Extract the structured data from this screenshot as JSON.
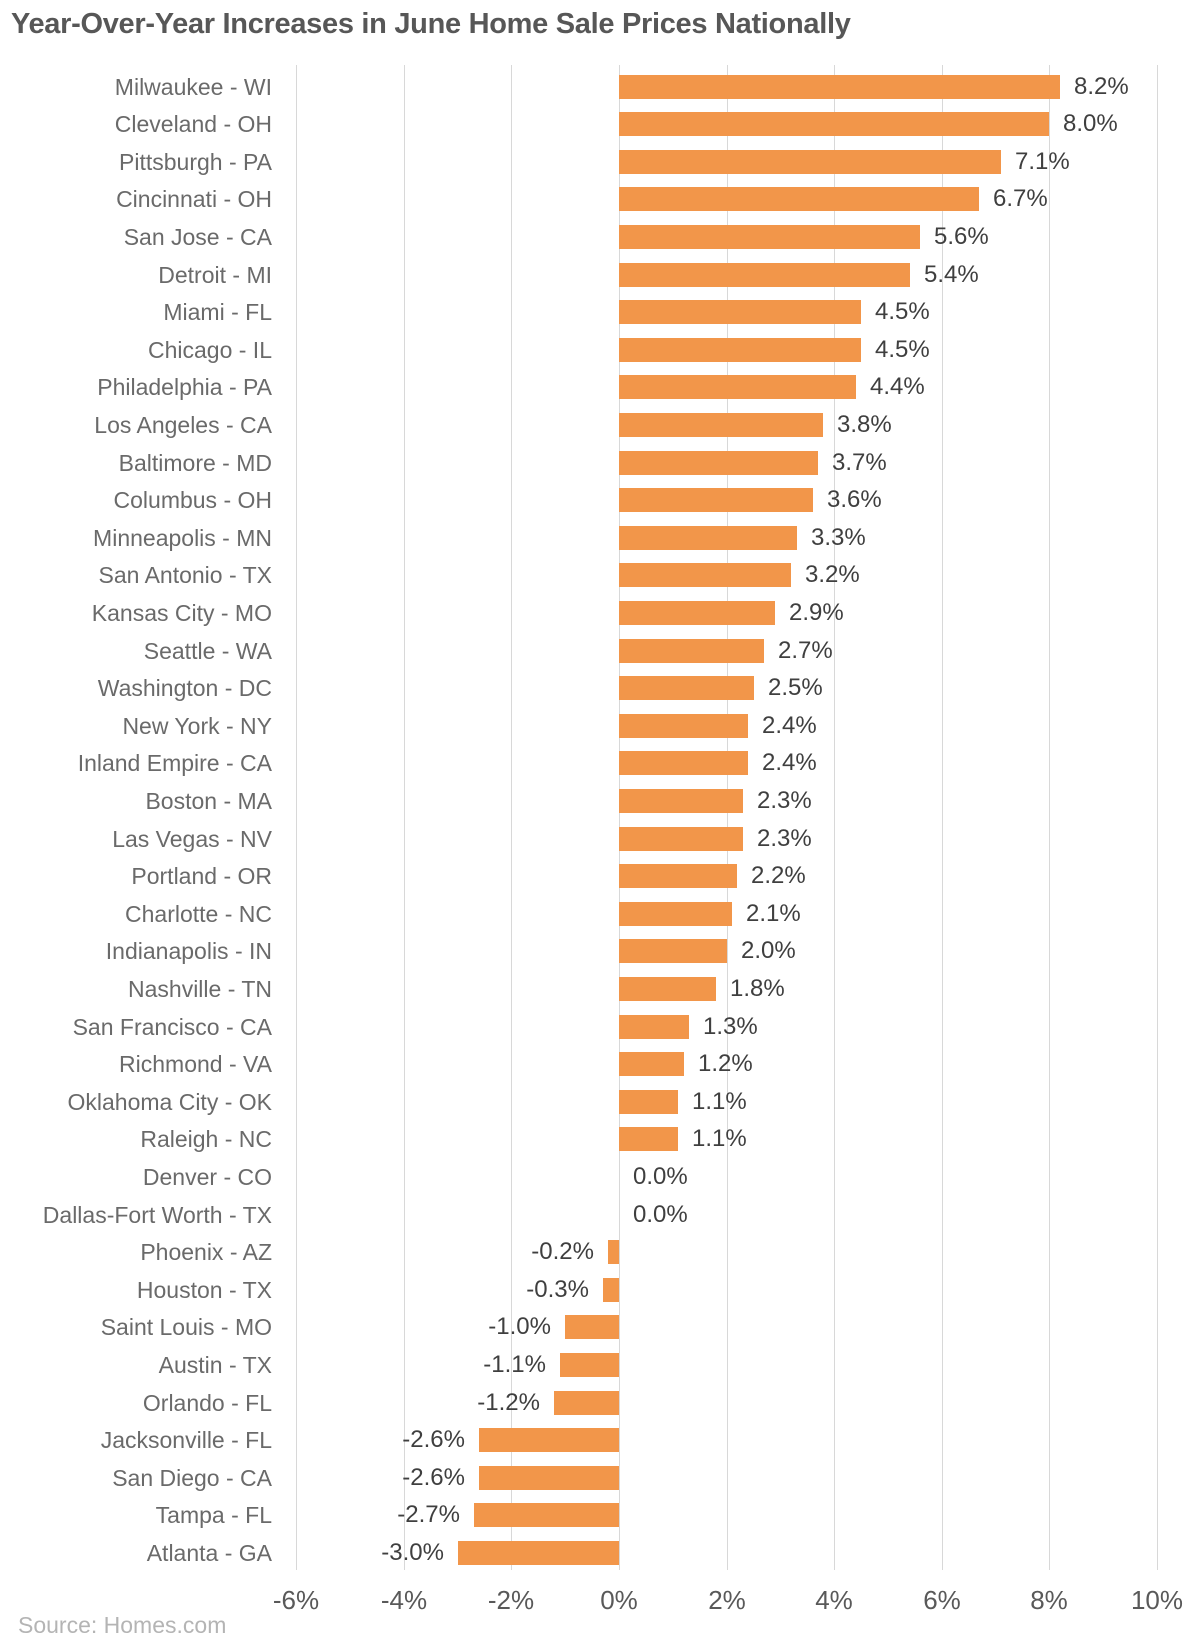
{
  "title": "Year-Over-Year Increases in June Home Sale Prices Nationally",
  "source_label": "Source: Homes.com",
  "colors": {
    "background": "#ffffff",
    "bar": "#F2964A",
    "title": "#575757",
    "category_label": "#6a6a6a",
    "value_label": "#3f3f3f",
    "tick_label": "#595959",
    "gridline": "#d8d8d8",
    "source": "#b4b4b4"
  },
  "chart_data": {
    "type": "bar",
    "orientation": "horizontal",
    "title": "Year-Over-Year Increases in June Home Sale Prices Nationally",
    "xlabel": "",
    "ylabel": "",
    "xlim": [
      -6,
      10
    ],
    "x_ticks": [
      -6,
      -4,
      -2,
      0,
      2,
      4,
      6,
      8,
      10
    ],
    "x_tick_labels": [
      "-6%",
      "-4%",
      "-2%",
      "0%",
      "2%",
      "4%",
      "6%",
      "8%",
      "10%"
    ],
    "grid": true,
    "legend": "none",
    "source": "Source: Homes.com",
    "categories": [
      "Milwaukee - WI",
      "Cleveland - OH",
      "Pittsburgh - PA",
      "Cincinnati - OH",
      "San Jose - CA",
      "Detroit - MI",
      "Miami - FL",
      "Chicago - IL",
      "Philadelphia - PA",
      "Los Angeles - CA",
      "Baltimore - MD",
      "Columbus - OH",
      "Minneapolis - MN",
      "San Antonio - TX",
      "Kansas City - MO",
      "Seattle - WA",
      "Washington - DC",
      "New York - NY",
      "Inland Empire - CA",
      "Boston - MA",
      "Las Vegas - NV",
      "Portland - OR",
      "Charlotte - NC",
      "Indianapolis - IN",
      "Nashville - TN",
      "San Francisco - CA",
      "Richmond - VA",
      "Oklahoma City - OK",
      "Raleigh - NC",
      "Denver - CO",
      "Dallas-Fort Worth - TX",
      "Phoenix - AZ",
      "Houston - TX",
      "Saint Louis - MO",
      "Austin - TX",
      "Orlando - FL",
      "Jacksonville - FL",
      "San Diego - CA",
      "Tampa - FL",
      "Atlanta - GA"
    ],
    "values": [
      8.2,
      8.0,
      7.1,
      6.7,
      5.6,
      5.4,
      4.5,
      4.5,
      4.4,
      3.8,
      3.7,
      3.6,
      3.3,
      3.2,
      2.9,
      2.7,
      2.5,
      2.4,
      2.4,
      2.3,
      2.3,
      2.2,
      2.1,
      2.0,
      1.8,
      1.3,
      1.2,
      1.1,
      1.1,
      0.0,
      0.0,
      -0.2,
      -0.3,
      -1.0,
      -1.1,
      -1.2,
      -2.6,
      -2.6,
      -2.7,
      -3.0
    ],
    "value_labels": [
      "8.2%",
      "8.0%",
      "7.1%",
      "6.7%",
      "5.6%",
      "5.4%",
      "4.5%",
      "4.5%",
      "4.4%",
      "3.8%",
      "3.7%",
      "3.6%",
      "3.3%",
      "3.2%",
      "2.9%",
      "2.7%",
      "2.5%",
      "2.4%",
      "2.4%",
      "2.3%",
      "2.3%",
      "2.2%",
      "2.1%",
      "2.0%",
      "1.8%",
      "1.3%",
      "1.2%",
      "1.1%",
      "1.1%",
      "0.0%",
      "0.0%",
      "-0.2%",
      "-0.3%",
      "-1.0%",
      "-1.1%",
      "-1.2%",
      "-2.6%",
      "-2.6%",
      "-2.7%",
      "-3.0%"
    ]
  }
}
